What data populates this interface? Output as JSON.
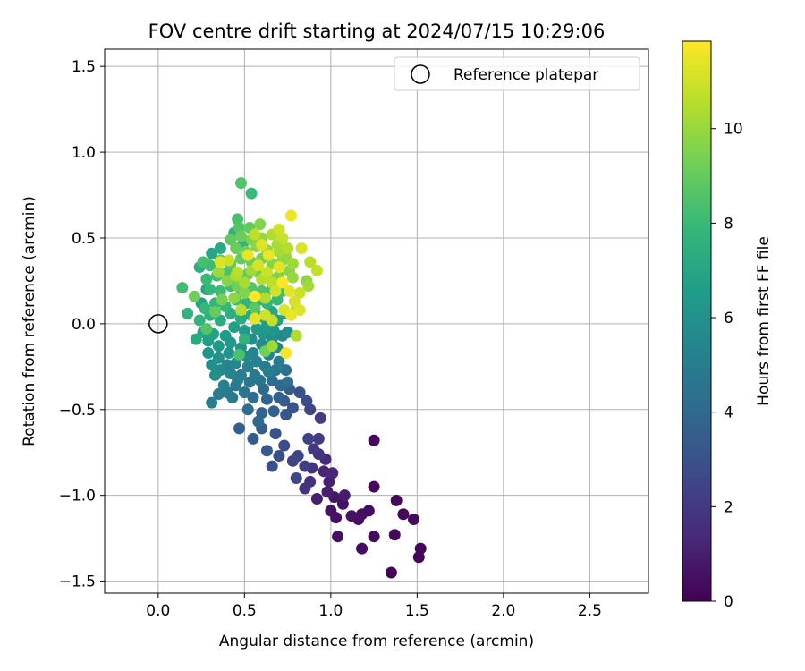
{
  "chart_data": {
    "type": "scatter",
    "title": "FOV centre drift starting at 2024/07/15 10:29:06",
    "xlabel": "Angular distance from reference (arcmin)",
    "ylabel": "Rotation from reference (arcmin)",
    "xlim": [
      -0.31,
      2.84
    ],
    "ylim": [
      -1.57,
      1.6
    ],
    "xticks": [
      0.0,
      0.5,
      1.0,
      1.5,
      2.0,
      2.5
    ],
    "xtick_labels": [
      "0.0",
      "0.5",
      "1.0",
      "1.5",
      "2.0",
      "2.5"
    ],
    "yticks": [
      1.5,
      1.0,
      0.5,
      0.0,
      -0.5,
      -1.0,
      -1.5
    ],
    "ytick_labels": [
      "1.5",
      "1.0",
      "0.5",
      "0.0",
      "−0.5",
      "−1.0",
      "−1.5"
    ],
    "grid": true,
    "legend": {
      "position": "top-right",
      "entries": [
        "Reference platepar"
      ]
    },
    "reference_point": {
      "x": 0.0,
      "y": 0.0,
      "label": "Reference platepar",
      "marker": "open-circle"
    },
    "colorbar": {
      "label": "Hours from first FF file",
      "min": 0,
      "max": 11.85,
      "ticks": [
        0,
        2,
        4,
        6,
        8,
        10
      ],
      "tick_labels": [
        "0",
        "2",
        "4",
        "6",
        "8",
        "10"
      ],
      "colormap": "viridis",
      "colormap_stops": [
        "#440154",
        "#482878",
        "#3e4989",
        "#31688e",
        "#26828e",
        "#1f9e89",
        "#35b779",
        "#6ece58",
        "#b5de2b",
        "#fde725"
      ]
    },
    "points": [
      {
        "x": 1.25,
        "y": -0.68,
        "t": 0.2
      },
      {
        "x": 1.35,
        "y": -1.45,
        "t": 0.1
      },
      {
        "x": 1.51,
        "y": -1.36,
        "t": 0.1
      },
      {
        "x": 1.52,
        "y": -1.31,
        "t": 0.2
      },
      {
        "x": 1.48,
        "y": -1.14,
        "t": 0.3
      },
      {
        "x": 1.38,
        "y": -1.03,
        "t": 0.3
      },
      {
        "x": 1.42,
        "y": -1.11,
        "t": 0.2
      },
      {
        "x": 1.37,
        "y": -1.23,
        "t": 0.2
      },
      {
        "x": 1.25,
        "y": -1.24,
        "t": 0.3
      },
      {
        "x": 1.18,
        "y": -1.31,
        "t": 0.4
      },
      {
        "x": 1.04,
        "y": -1.24,
        "t": 0.5
      },
      {
        "x": 1.25,
        "y": -0.95,
        "t": 0.3
      },
      {
        "x": 1.16,
        "y": -1.14,
        "t": 0.5
      },
      {
        "x": 1.12,
        "y": -1.12,
        "t": 0.6
      },
      {
        "x": 1.07,
        "y": -1.05,
        "t": 0.6
      },
      {
        "x": 1.03,
        "y": -1.13,
        "t": 0.5
      },
      {
        "x": 1.02,
        "y": -1.01,
        "t": 0.7
      },
      {
        "x": 1.0,
        "y": -1.09,
        "t": 0.6
      },
      {
        "x": 1.22,
        "y": -1.09,
        "t": 0.4
      },
      {
        "x": 1.18,
        "y": -1.11,
        "t": 0.5
      },
      {
        "x": 1.08,
        "y": -1.0,
        "t": 0.9
      },
      {
        "x": 0.98,
        "y": -0.98,
        "t": 1.0
      },
      {
        "x": 0.96,
        "y": -0.86,
        "t": 1.2
      },
      {
        "x": 0.99,
        "y": -0.92,
        "t": 1.1
      },
      {
        "x": 0.92,
        "y": -1.02,
        "t": 1.0
      },
      {
        "x": 1.01,
        "y": -0.87,
        "t": 1.3
      },
      {
        "x": 0.97,
        "y": -0.79,
        "t": 1.4
      },
      {
        "x": 0.88,
        "y": -0.92,
        "t": 1.6
      },
      {
        "x": 0.89,
        "y": -0.84,
        "t": 1.7
      },
      {
        "x": 0.93,
        "y": -0.76,
        "t": 1.8
      },
      {
        "x": 0.85,
        "y": -0.96,
        "t": 1.8
      },
      {
        "x": 0.93,
        "y": -0.67,
        "t": 2.1
      },
      {
        "x": 0.9,
        "y": -0.73,
        "t": 2.0
      },
      {
        "x": 0.85,
        "y": -0.83,
        "t": 2.2
      },
      {
        "x": 0.8,
        "y": -0.9,
        "t": 2.6
      },
      {
        "x": 0.78,
        "y": -0.8,
        "t": 2.4
      },
      {
        "x": 0.73,
        "y": -0.71,
        "t": 2.7
      },
      {
        "x": 0.7,
        "y": -0.77,
        "t": 2.8
      },
      {
        "x": 0.66,
        "y": -0.83,
        "t": 2.9
      },
      {
        "x": 0.68,
        "y": -0.64,
        "t": 3.0
      },
      {
        "x": 0.63,
        "y": -0.74,
        "t": 3.3
      },
      {
        "x": 0.6,
        "y": -0.61,
        "t": 3.4
      },
      {
        "x": 0.55,
        "y": -0.67,
        "t": 3.4
      },
      {
        "x": 0.47,
        "y": -0.61,
        "t": 3.6
      },
      {
        "x": 0.87,
        "y": -0.67,
        "t": 2.3
      },
      {
        "x": 0.81,
        "y": -0.77,
        "t": 2.5
      },
      {
        "x": 0.94,
        "y": -0.55,
        "t": 2.2
      },
      {
        "x": 0.88,
        "y": -0.5,
        "t": 2.5
      },
      {
        "x": 0.86,
        "y": -0.45,
        "t": 2.7
      },
      {
        "x": 0.82,
        "y": -0.4,
        "t": 3.0
      },
      {
        "x": 0.78,
        "y": -0.49,
        "t": 3.1
      },
      {
        "x": 0.74,
        "y": -0.53,
        "t": 3.2
      },
      {
        "x": 0.73,
        "y": -0.45,
        "t": 3.4
      },
      {
        "x": 0.76,
        "y": -0.38,
        "t": 3.5
      },
      {
        "x": 0.7,
        "y": -0.43,
        "t": 3.6
      },
      {
        "x": 0.67,
        "y": -0.51,
        "t": 3.6
      },
      {
        "x": 0.63,
        "y": -0.44,
        "t": 3.8
      },
      {
        "x": 0.6,
        "y": -0.52,
        "t": 3.8
      },
      {
        "x": 0.58,
        "y": -0.57,
        "t": 4.0
      },
      {
        "x": 0.52,
        "y": -0.5,
        "t": 4.2
      },
      {
        "x": 0.55,
        "y": -0.43,
        "t": 4.2
      },
      {
        "x": 0.61,
        "y": -0.38,
        "t": 4.1
      },
      {
        "x": 0.66,
        "y": -0.33,
        "t": 4.2
      },
      {
        "x": 0.71,
        "y": -0.36,
        "t": 4.0
      },
      {
        "x": 0.5,
        "y": -0.4,
        "t": 4.5
      },
      {
        "x": 0.45,
        "y": -0.36,
        "t": 4.7
      },
      {
        "x": 0.4,
        "y": -0.4,
        "t": 4.8
      },
      {
        "x": 0.35,
        "y": -0.41,
        "t": 4.9
      },
      {
        "x": 0.31,
        "y": -0.46,
        "t": 5.0
      },
      {
        "x": 0.48,
        "y": -0.3,
        "t": 5.0
      },
      {
        "x": 0.56,
        "y": -0.3,
        "t": 4.8
      },
      {
        "x": 0.62,
        "y": -0.25,
        "t": 4.9
      },
      {
        "x": 0.68,
        "y": -0.27,
        "t": 4.6
      },
      {
        "x": 0.74,
        "y": -0.27,
        "t": 4.4
      },
      {
        "x": 0.75,
        "y": -0.34,
        "t": 4.3
      },
      {
        "x": 0.59,
        "y": -0.33,
        "t": 4.6
      },
      {
        "x": 0.53,
        "y": -0.34,
        "t": 4.7
      },
      {
        "x": 0.43,
        "y": -0.43,
        "t": 4.8
      },
      {
        "x": 0.38,
        "y": -0.36,
        "t": 5.2
      },
      {
        "x": 0.42,
        "y": -0.29,
        "t": 5.4
      },
      {
        "x": 0.36,
        "y": -0.27,
        "t": 5.6
      },
      {
        "x": 0.33,
        "y": -0.3,
        "t": 5.8
      },
      {
        "x": 0.45,
        "y": -0.23,
        "t": 5.6
      },
      {
        "x": 0.51,
        "y": -0.19,
        "t": 5.5
      },
      {
        "x": 0.57,
        "y": -0.22,
        "t": 5.3
      },
      {
        "x": 0.64,
        "y": -0.18,
        "t": 5.2
      },
      {
        "x": 0.69,
        "y": -0.14,
        "t": 5.3
      },
      {
        "x": 0.72,
        "y": -0.07,
        "t": 5.6
      },
      {
        "x": 0.75,
        "y": -0.05,
        "t": 5.9
      },
      {
        "x": 0.66,
        "y": -0.09,
        "t": 5.8
      },
      {
        "x": 0.6,
        "y": -0.12,
        "t": 5.7
      },
      {
        "x": 0.54,
        "y": -0.09,
        "t": 5.9
      },
      {
        "x": 0.48,
        "y": -0.14,
        "t": 6.0
      },
      {
        "x": 0.41,
        "y": -0.17,
        "t": 6.1
      },
      {
        "x": 0.35,
        "y": -0.13,
        "t": 6.3
      },
      {
        "x": 0.29,
        "y": -0.1,
        "t": 6.6
      },
      {
        "x": 0.26,
        "y": -0.05,
        "t": 6.9
      },
      {
        "x": 0.22,
        "y": -0.09,
        "t": 7.2
      },
      {
        "x": 0.32,
        "y": -0.06,
        "t": 6.8
      },
      {
        "x": 0.39,
        "y": -0.07,
        "t": 6.5
      },
      {
        "x": 0.44,
        "y": -0.02,
        "t": 6.7
      },
      {
        "x": 0.5,
        "y": -0.04,
        "t": 6.5
      },
      {
        "x": 0.57,
        "y": -0.03,
        "t": 6.4
      },
      {
        "x": 0.63,
        "y": -0.01,
        "t": 6.4
      },
      {
        "x": 0.69,
        "y": 0.02,
        "t": 6.6
      },
      {
        "x": 0.74,
        "y": 0.06,
        "t": 6.8
      },
      {
        "x": 0.66,
        "y": 0.07,
        "t": 7.0
      },
      {
        "x": 0.6,
        "y": 0.04,
        "t": 7.0
      },
      {
        "x": 0.54,
        "y": 0.05,
        "t": 7.1
      },
      {
        "x": 0.48,
        "y": 0.03,
        "t": 7.2
      },
      {
        "x": 0.42,
        "y": 0.06,
        "t": 7.4
      },
      {
        "x": 0.36,
        "y": 0.02,
        "t": 7.3
      },
      {
        "x": 0.3,
        "y": 0.05,
        "t": 7.5
      },
      {
        "x": 0.24,
        "y": 0.02,
        "t": 7.7
      },
      {
        "x": 0.27,
        "y": 0.09,
        "t": 7.9
      },
      {
        "x": 0.33,
        "y": 0.12,
        "t": 7.8
      },
      {
        "x": 0.39,
        "y": 0.1,
        "t": 7.9
      },
      {
        "x": 0.45,
        "y": 0.14,
        "t": 8.0
      },
      {
        "x": 0.51,
        "y": 0.12,
        "t": 7.8
      },
      {
        "x": 0.57,
        "y": 0.13,
        "t": 7.7
      },
      {
        "x": 0.63,
        "y": 0.12,
        "t": 7.6
      },
      {
        "x": 0.69,
        "y": 0.14,
        "t": 7.9
      },
      {
        "x": 0.72,
        "y": 0.19,
        "t": 8.2
      },
      {
        "x": 0.66,
        "y": 0.2,
        "t": 8.4
      },
      {
        "x": 0.6,
        "y": 0.19,
        "t": 8.5
      },
      {
        "x": 0.54,
        "y": 0.21,
        "t": 8.6
      },
      {
        "x": 0.48,
        "y": 0.2,
        "t": 8.3
      },
      {
        "x": 0.42,
        "y": 0.22,
        "t": 8.2
      },
      {
        "x": 0.36,
        "y": 0.19,
        "t": 8.1
      },
      {
        "x": 0.3,
        "y": 0.2,
        "t": 7.9
      },
      {
        "x": 0.28,
        "y": 0.26,
        "t": 8.0
      },
      {
        "x": 0.34,
        "y": 0.28,
        "t": 8.3
      },
      {
        "x": 0.4,
        "y": 0.3,
        "t": 8.4
      },
      {
        "x": 0.46,
        "y": 0.27,
        "t": 8.7
      },
      {
        "x": 0.52,
        "y": 0.29,
        "t": 8.9
      },
      {
        "x": 0.58,
        "y": 0.3,
        "t": 9.1
      },
      {
        "x": 0.64,
        "y": 0.27,
        "t": 9.3
      },
      {
        "x": 0.7,
        "y": 0.28,
        "t": 9.5
      },
      {
        "x": 0.76,
        "y": 0.31,
        "t": 9.7
      },
      {
        "x": 0.3,
        "y": 0.34,
        "t": 8.1
      },
      {
        "x": 0.26,
        "y": 0.36,
        "t": 8.3
      },
      {
        "x": 0.36,
        "y": 0.37,
        "t": 8.6
      },
      {
        "x": 0.42,
        "y": 0.35,
        "t": 8.8
      },
      {
        "x": 0.48,
        "y": 0.38,
        "t": 9.0
      },
      {
        "x": 0.54,
        "y": 0.36,
        "t": 9.2
      },
      {
        "x": 0.6,
        "y": 0.38,
        "t": 9.4
      },
      {
        "x": 0.66,
        "y": 0.35,
        "t": 9.6
      },
      {
        "x": 0.72,
        "y": 0.37,
        "t": 9.9
      },
      {
        "x": 0.78,
        "y": 0.35,
        "t": 10.1
      },
      {
        "x": 0.45,
        "y": 0.44,
        "t": 9.1
      },
      {
        "x": 0.51,
        "y": 0.42,
        "t": 9.4
      },
      {
        "x": 0.57,
        "y": 0.45,
        "t": 9.8
      },
      {
        "x": 0.63,
        "y": 0.43,
        "t": 10.0
      },
      {
        "x": 0.69,
        "y": 0.46,
        "t": 10.3
      },
      {
        "x": 0.75,
        "y": 0.44,
        "t": 10.5
      },
      {
        "x": 0.42,
        "y": 0.49,
        "t": 8.9
      },
      {
        "x": 0.48,
        "y": 0.51,
        "t": 9.1
      },
      {
        "x": 0.54,
        "y": 0.49,
        "t": 9.5
      },
      {
        "x": 0.6,
        "y": 0.5,
        "t": 9.9
      },
      {
        "x": 0.66,
        "y": 0.52,
        "t": 10.4
      },
      {
        "x": 0.72,
        "y": 0.5,
        "t": 10.8
      },
      {
        "x": 0.47,
        "y": 0.56,
        "t": 8.6
      },
      {
        "x": 0.53,
        "y": 0.56,
        "t": 9.0
      },
      {
        "x": 0.59,
        "y": 0.58,
        "t": 9.6
      },
      {
        "x": 0.7,
        "y": 0.55,
        "t": 11.0
      },
      {
        "x": 0.46,
        "y": 0.61,
        "t": 8.4
      },
      {
        "x": 0.77,
        "y": 0.63,
        "t": 11.6
      },
      {
        "x": 0.48,
        "y": 0.82,
        "t": 8.6
      },
      {
        "x": 0.54,
        "y": 0.76,
        "t": 8.0
      },
      {
        "x": 0.83,
        "y": 0.44,
        "t": 11.2
      },
      {
        "x": 0.88,
        "y": 0.36,
        "t": 10.6
      },
      {
        "x": 0.92,
        "y": 0.31,
        "t": 10.8
      },
      {
        "x": 0.86,
        "y": 0.25,
        "t": 9.8
      },
      {
        "x": 0.87,
        "y": 0.22,
        "t": 10.2
      },
      {
        "x": 0.82,
        "y": 0.18,
        "t": 10.9
      },
      {
        "x": 0.79,
        "y": 0.13,
        "t": 11.1
      },
      {
        "x": 0.8,
        "y": 0.09,
        "t": 10.6
      },
      {
        "x": 0.82,
        "y": 0.08,
        "t": 11.3
      },
      {
        "x": 0.77,
        "y": 0.05,
        "t": 11.5
      },
      {
        "x": 0.73,
        "y": 0.08,
        "t": 11.2
      },
      {
        "x": 0.8,
        "y": -0.07,
        "t": 10.4
      },
      {
        "x": 0.66,
        "y": 0.02,
        "t": 10.8
      },
      {
        "x": 0.62,
        "y": 0.05,
        "t": 11.0
      },
      {
        "x": 0.56,
        "y": 0.03,
        "t": 11.4
      },
      {
        "x": 0.74,
        "y": -0.17,
        "t": 11.7
      },
      {
        "x": 0.66,
        "y": -0.13,
        "t": 10.1
      },
      {
        "x": 0.48,
        "y": 0.08,
        "t": 10.6
      },
      {
        "x": 0.44,
        "y": 0.15,
        "t": 9.8
      },
      {
        "x": 0.37,
        "y": 0.14,
        "t": 9.4
      },
      {
        "x": 0.33,
        "y": 0.07,
        "t": 9.0
      },
      {
        "x": 0.28,
        "y": -0.03,
        "t": 8.6
      },
      {
        "x": 0.14,
        "y": 0.21,
        "t": 8.2
      },
      {
        "x": 0.17,
        "y": 0.06,
        "t": 7.6
      },
      {
        "x": 0.21,
        "y": 0.16,
        "t": 9.2
      },
      {
        "x": 0.24,
        "y": 0.33,
        "t": 7.4
      },
      {
        "x": 0.31,
        "y": 0.41,
        "t": 7.0
      },
      {
        "x": 0.36,
        "y": 0.44,
        "t": 7.2
      },
      {
        "x": 0.44,
        "y": 0.53,
        "t": 7.6
      },
      {
        "x": 0.49,
        "y": 0.46,
        "t": 7.8
      },
      {
        "x": 0.56,
        "y": 0.52,
        "t": 10.7
      },
      {
        "x": 0.6,
        "y": 0.46,
        "t": 11.3
      },
      {
        "x": 0.64,
        "y": 0.4,
        "t": 11.6
      },
      {
        "x": 0.7,
        "y": 0.33,
        "t": 11.4
      },
      {
        "x": 0.72,
        "y": 0.24,
        "t": 11.8
      },
      {
        "x": 0.76,
        "y": 0.19,
        "t": 11.4
      },
      {
        "x": 0.68,
        "y": 0.19,
        "t": 11.0
      },
      {
        "x": 0.6,
        "y": 0.26,
        "t": 10.5
      },
      {
        "x": 0.54,
        "y": 0.31,
        "t": 10.2
      },
      {
        "x": 0.5,
        "y": 0.24,
        "t": 10.3
      },
      {
        "x": 0.46,
        "y": 0.3,
        "t": 10.6
      },
      {
        "x": 0.41,
        "y": 0.37,
        "t": 10.9
      },
      {
        "x": 0.36,
        "y": 0.36,
        "t": 11.2
      },
      {
        "x": 0.52,
        "y": 0.4,
        "t": 11.5
      },
      {
        "x": 0.58,
        "y": 0.34,
        "t": 11.1
      },
      {
        "x": 0.63,
        "y": 0.3,
        "t": 10.9
      },
      {
        "x": 0.66,
        "y": 0.24,
        "t": 10.7
      },
      {
        "x": 0.7,
        "y": 0.42,
        "t": 10.2
      },
      {
        "x": 0.74,
        "y": 0.39,
        "t": 9.9
      },
      {
        "x": 0.78,
        "y": 0.27,
        "t": 10.0
      },
      {
        "x": 0.62,
        "y": 0.15,
        "t": 10.4
      },
      {
        "x": 0.56,
        "y": 0.16,
        "t": 11.8
      },
      {
        "x": 0.5,
        "y": 0.18,
        "t": 9.6
      },
      {
        "x": 0.46,
        "y": 0.22,
        "t": 9.3
      },
      {
        "x": 0.4,
        "y": 0.25,
        "t": 9.7
      },
      {
        "x": 0.35,
        "y": 0.3,
        "t": 10.1
      },
      {
        "x": 0.45,
        "y": 0.28,
        "t": 10.4
      },
      {
        "x": 0.28,
        "y": 0.2,
        "t": 6.9
      },
      {
        "x": 0.25,
        "y": 0.12,
        "t": 6.7
      },
      {
        "x": 0.29,
        "y": -0.17,
        "t": 6.2
      },
      {
        "x": 0.31,
        "y": -0.24,
        "t": 5.9
      },
      {
        "x": 0.35,
        "y": -0.2,
        "t": 6.0
      },
      {
        "x": 0.42,
        "y": -0.11,
        "t": 6.3
      },
      {
        "x": 0.55,
        "y": -0.17,
        "t": 5.4
      },
      {
        "x": 0.61,
        "y": -0.06,
        "t": 6.1
      },
      {
        "x": 0.67,
        "y": -0.04,
        "t": 6.2
      },
      {
        "x": 0.7,
        "y": -0.22,
        "t": 4.9
      },
      {
        "x": 0.64,
        "y": -0.28,
        "t": 5.1
      },
      {
        "x": 0.52,
        "y": -0.25,
        "t": 5.2
      },
      {
        "x": 0.46,
        "y": -0.33,
        "t": 5.0
      },
      {
        "x": 0.4,
        "y": -0.24,
        "t": 5.3
      },
      {
        "x": 0.5,
        "y": -0.09,
        "t": 7.6
      },
      {
        "x": 0.56,
        "y": 0.09,
        "t": 8.8
      },
      {
        "x": 0.47,
        "y": -0.18,
        "t": 8.4
      },
      {
        "x": 0.62,
        "y": -0.16,
        "t": 9.2
      }
    ]
  }
}
